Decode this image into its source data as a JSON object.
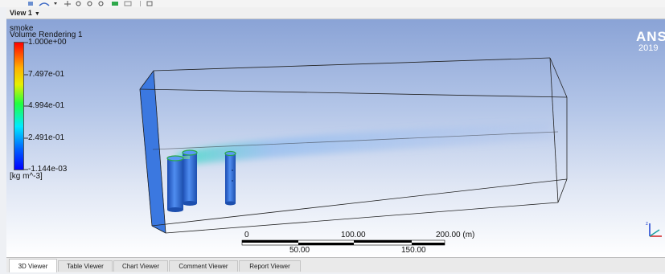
{
  "viewbar": {
    "view_label": "View 1"
  },
  "legend": {
    "variable": "smoke",
    "title": "Volume Rendering 1",
    "ticks": [
      "1.000e+00",
      "7.497e-01",
      "4.994e-01",
      "2.491e-01",
      "-1.144e-03"
    ],
    "unit": "[kg m^-3]"
  },
  "logo": {
    "name": "ANSYS",
    "year": "2019"
  },
  "scale": {
    "top_labels": [
      "0",
      "100.00",
      "200.00 (m)"
    ],
    "bottom_labels": [
      "50.00",
      "150.00"
    ]
  },
  "tabs": [
    {
      "label": "3D Viewer",
      "active": true
    },
    {
      "label": "Table Viewer",
      "active": false
    },
    {
      "label": "Chart Viewer",
      "active": false
    },
    {
      "label": "Comment Viewer",
      "active": false
    },
    {
      "label": "Report Viewer",
      "active": false
    }
  ],
  "colors": {
    "tab_active": "#ffffff",
    "cylinder": "#2f6fd8",
    "smoke": "#3fd0c8"
  }
}
